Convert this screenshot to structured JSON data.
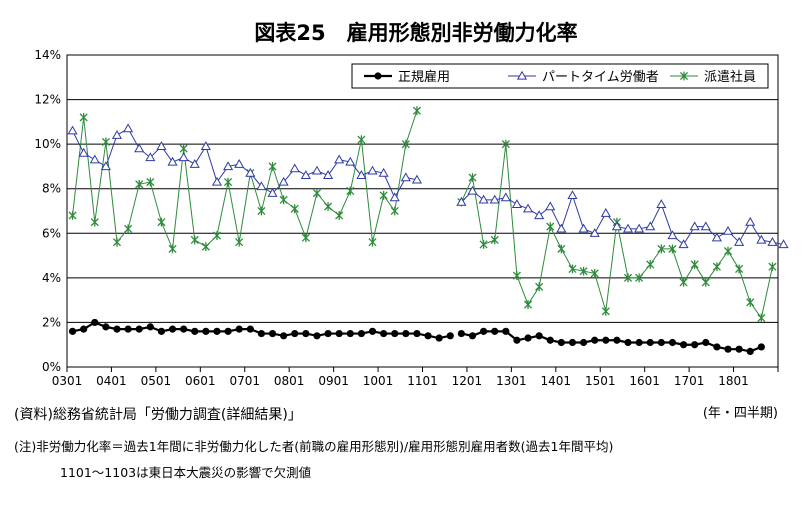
{
  "chart_data": {
    "type": "line",
    "title": "図表25　雇用形態別非労働力化率",
    "xlabel": "(年・四半期)",
    "ylabel": "",
    "ylim": [
      0,
      14
    ],
    "y_ticks": [
      "0%",
      "2%",
      "4%",
      "6%",
      "8%",
      "10%",
      "12%",
      "14%"
    ],
    "x_ticks": [
      "0301",
      "0401",
      "0501",
      "0601",
      "0701",
      "0801",
      "0901",
      "1001",
      "1101",
      "1201",
      "1301",
      "1401",
      "1501",
      "1601",
      "1701",
      "1801"
    ],
    "grid": true,
    "legend_position": "top-right",
    "series": [
      {
        "name": "正規雇用",
        "color": "#000000",
        "marker": "circle",
        "segments": [
          {
            "start": "0301",
            "values": [
              1.6,
              1.7,
              2.0,
              1.8,
              1.7,
              1.7,
              1.7,
              1.8,
              1.6,
              1.7,
              1.7,
              1.6,
              1.6,
              1.6,
              1.6,
              1.7,
              1.7,
              1.5,
              1.5,
              1.4,
              1.5,
              1.5,
              1.4,
              1.5,
              1.5,
              1.5,
              1.5,
              1.6,
              1.5,
              1.5,
              1.5,
              1.5,
              1.4,
              1.3,
              1.4
            ]
          },
          {
            "start": "1104",
            "values": [
              1.5,
              1.4,
              1.6,
              1.6,
              1.6,
              1.2,
              1.3,
              1.4,
              1.2,
              1.1,
              1.1,
              1.1,
              1.2,
              1.2,
              1.2,
              1.1,
              1.1,
              1.1,
              1.1,
              1.1,
              1.0,
              1.0,
              1.1,
              0.9,
              0.8,
              0.8,
              0.7,
              0.9
            ]
          }
        ]
      },
      {
        "name": "パートタイム労働者",
        "color": "#2e3aa6",
        "marker": "triangle",
        "segments": [
          {
            "start": "0301",
            "values": [
              10.6,
              9.6,
              9.3,
              9.0,
              10.4,
              10.7,
              9.8,
              9.4,
              9.9,
              9.2,
              9.4,
              9.1,
              9.9,
              8.3,
              9.0,
              9.1,
              8.7,
              8.1,
              7.8,
              8.3,
              8.9,
              8.6,
              8.8,
              8.6,
              9.3,
              9.2,
              8.6,
              8.8,
              8.7,
              7.6,
              8.5,
              8.4
            ]
          },
          {
            "start": "1104",
            "values": [
              7.4,
              7.9,
              7.5,
              7.5,
              7.6,
              7.3,
              7.1,
              6.8,
              7.2,
              6.2,
              7.7,
              6.2,
              6.0,
              6.9,
              6.3,
              6.2,
              6.2,
              6.3,
              7.3,
              5.9,
              5.5,
              6.3,
              6.3,
              5.8,
              6.1,
              5.6,
              6.5,
              5.7,
              5.6,
              5.5
            ]
          }
        ]
      },
      {
        "name": "派遣社員",
        "color": "#2e8b3a",
        "marker": "star",
        "segments": [
          {
            "start": "0301",
            "values": [
              6.8,
              11.2,
              6.5,
              10.1,
              5.6,
              6.2,
              8.2,
              8.3,
              6.5,
              5.3,
              9.8,
              5.7,
              5.4,
              5.9,
              8.3,
              5.6,
              8.7,
              7.0,
              9.0,
              7.5,
              7.1,
              5.8,
              7.8,
              7.2,
              6.8,
              7.9,
              10.2,
              5.6,
              7.7,
              7.0,
              10.0,
              11.5
            ]
          },
          {
            "start": "1104",
            "values": [
              7.4,
              8.5,
              5.5,
              5.7,
              10.0,
              4.1,
              2.8,
              3.6,
              6.3,
              5.3,
              4.4,
              4.3,
              4.2,
              2.5,
              6.5,
              4.0,
              4.0,
              4.6,
              5.3,
              5.3,
              3.8,
              4.6,
              3.8,
              4.5,
              5.2,
              4.4,
              2.9,
              2.2,
              4.5
            ]
          }
        ]
      }
    ]
  },
  "notes": {
    "source": "(資料)総務省統計局「労働力調査(詳細結果)」",
    "note1": "(注)非労働力化率＝過去1年間に非労働力化した者(前職の雇用形態別)/雇用形態別雇用者数(過去1年間平均)",
    "note2": "1101～1103は東日本大震災の影響で欠測値"
  }
}
